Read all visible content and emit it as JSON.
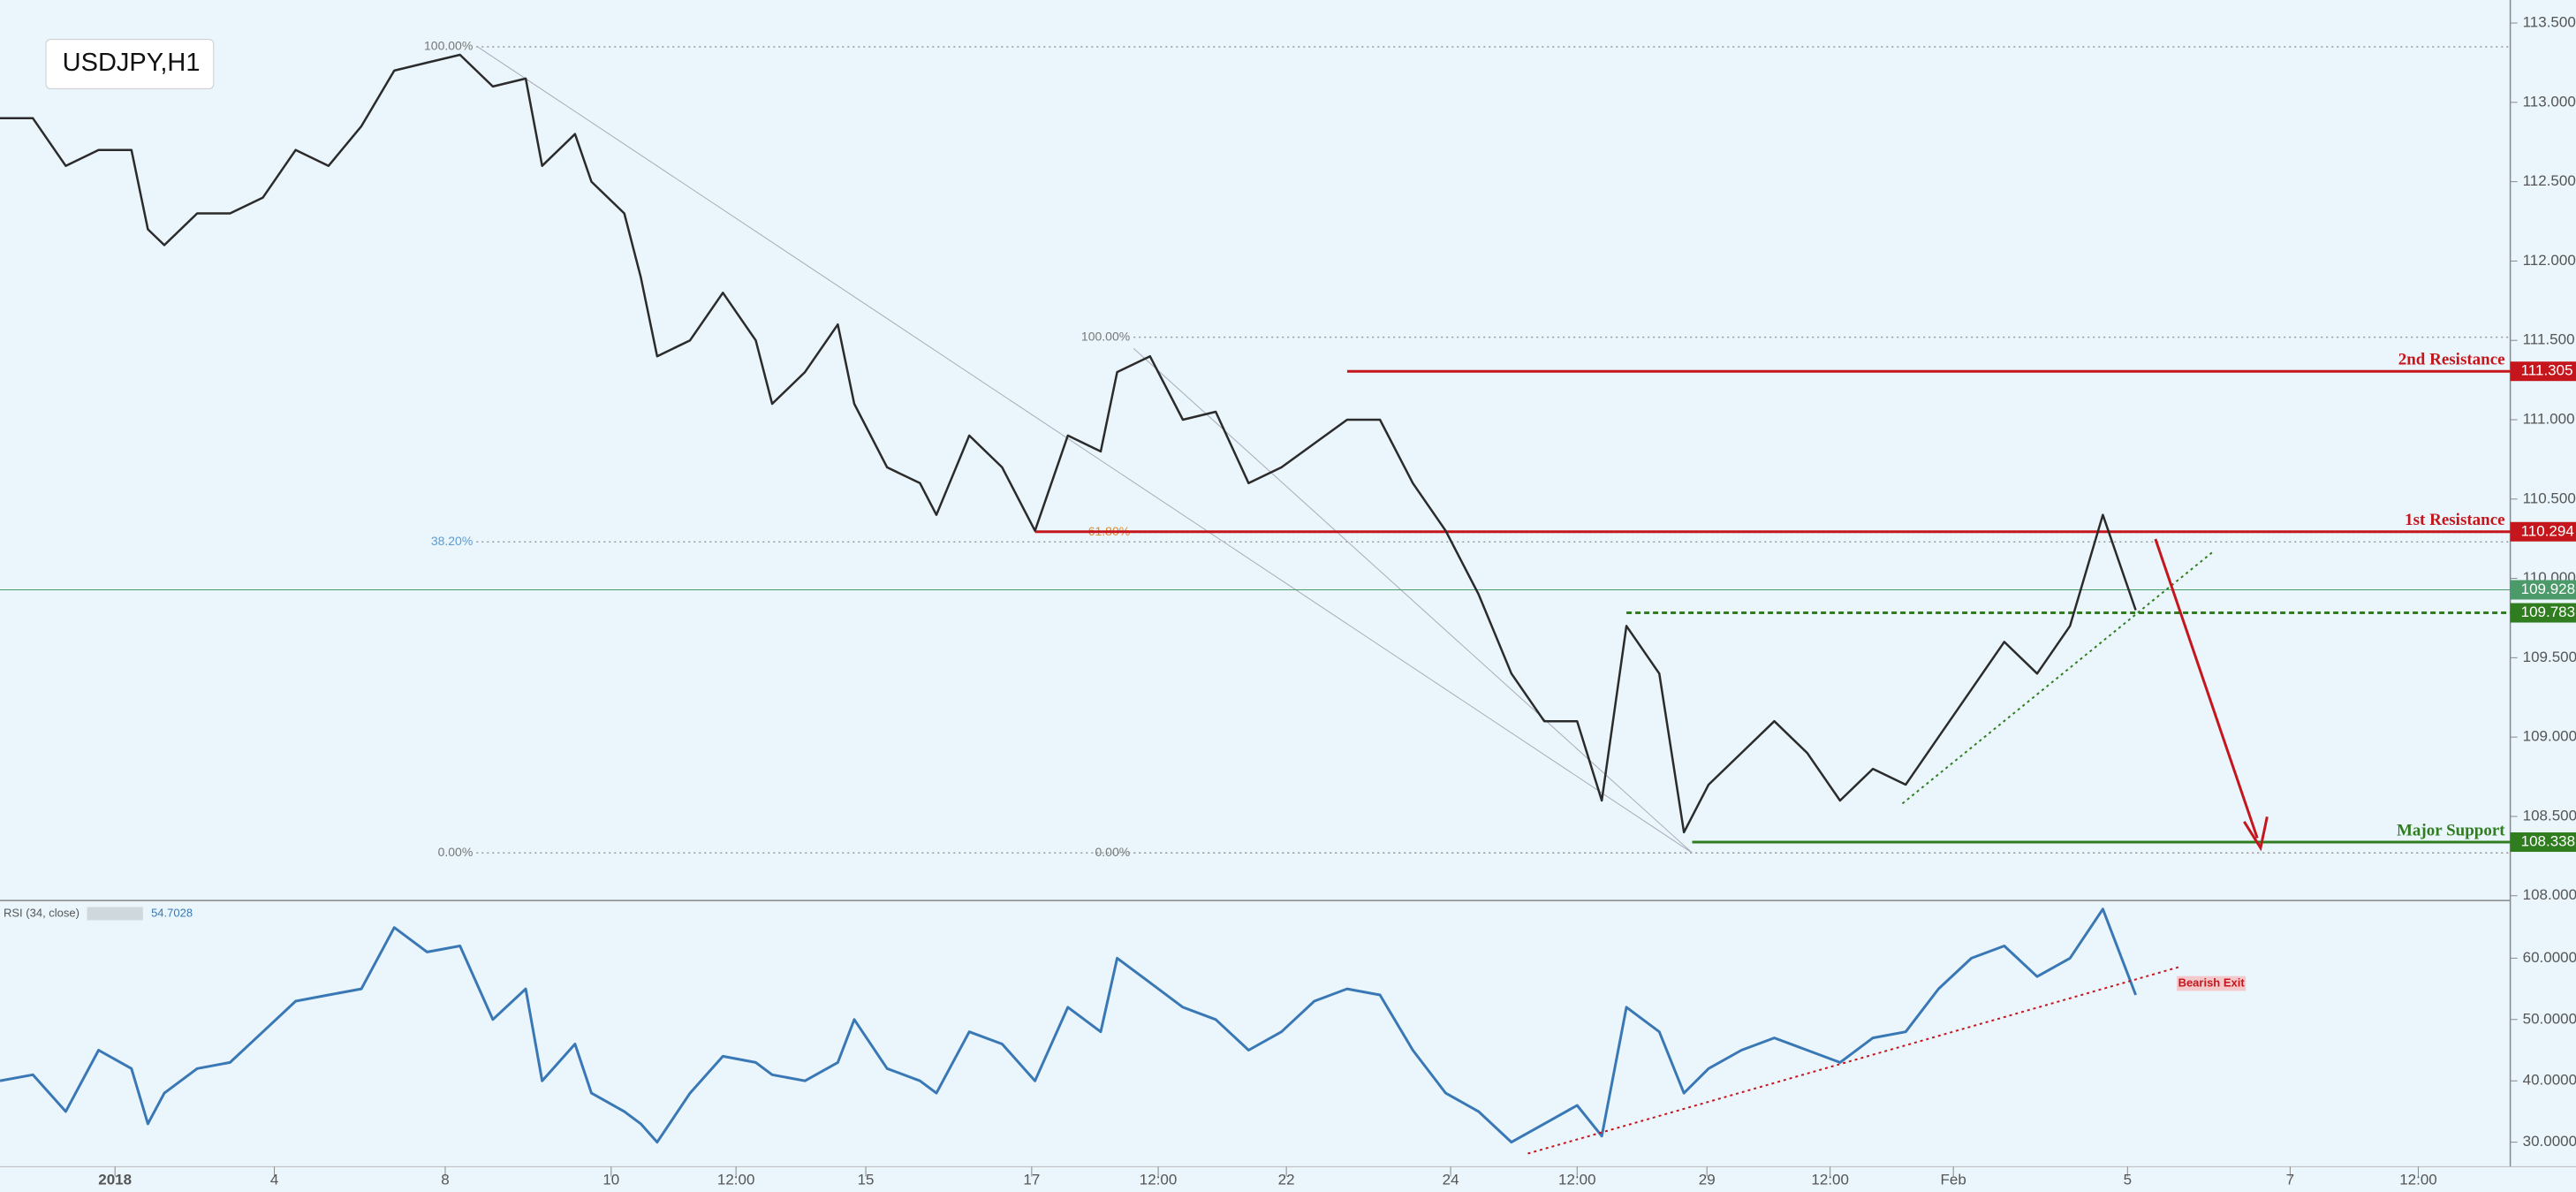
{
  "chart_data": [
    {
      "type": "line",
      "title": "USDJPY,H1",
      "color": "#2b2b2b",
      "x": [
        0,
        2,
        4,
        6,
        8,
        9,
        10,
        12,
        14,
        16,
        18,
        20,
        22,
        24,
        26,
        28,
        30,
        32,
        33,
        35,
        36,
        38,
        39,
        40,
        42,
        44,
        46,
        47,
        49,
        51,
        52,
        54,
        56,
        57,
        59,
        61,
        63,
        65,
        67,
        68,
        70,
        72,
        74,
        76,
        78,
        80,
        82,
        84,
        86,
        88,
        90,
        92,
        94,
        96,
        97.5,
        99,
        101,
        102.5,
        104,
        106,
        108,
        110,
        112,
        114,
        116,
        118,
        120,
        122,
        124,
        126,
        128,
        130
      ],
      "values": [
        112.9,
        112.9,
        112.6,
        112.7,
        112.7,
        112.2,
        112.1,
        112.3,
        112.3,
        112.4,
        112.7,
        112.6,
        112.85,
        113.2,
        113.25,
        113.3,
        113.1,
        113.15,
        112.6,
        112.8,
        112.5,
        112.3,
        111.9,
        111.4,
        111.5,
        111.8,
        111.5,
        111.1,
        111.3,
        111.6,
        111.1,
        110.7,
        110.6,
        110.4,
        110.9,
        110.7,
        110.3,
        110.9,
        110.8,
        111.3,
        111.4,
        111.0,
        111.05,
        110.6,
        110.7,
        110.85,
        111.0,
        111.0,
        110.6,
        110.3,
        109.9,
        109.4,
        109.1,
        109.1,
        108.6,
        109.7,
        109.4,
        108.4,
        108.7,
        108.9,
        109.1,
        108.9,
        108.6,
        108.8,
        108.7,
        109.0,
        109.3,
        109.6,
        109.4,
        109.7,
        110.4,
        109.8
      ],
      "xlim": [
        0,
        152.8
      ],
      "xticks": [
        {
          "value": 7,
          "label": "2018"
        },
        {
          "value": 16.7,
          "label": "4"
        },
        {
          "value": 27.1,
          "label": "8"
        },
        {
          "value": 37.2,
          "label": "10"
        },
        {
          "value": 44.8,
          "label": "12:00"
        },
        {
          "value": 52.7,
          "label": "15"
        },
        {
          "value": 62.8,
          "label": "17"
        },
        {
          "value": 70.5,
          "label": "12:00"
        },
        {
          "value": 78.3,
          "label": "22"
        },
        {
          "value": 88.3,
          "label": "24"
        },
        {
          "value": 96,
          "label": "12:00"
        },
        {
          "value": 103.9,
          "label": "29"
        },
        {
          "value": 111.4,
          "label": "12:00"
        },
        {
          "value": 118.9,
          "label": "Feb"
        },
        {
          "value": 129.5,
          "label": "5"
        },
        {
          "value": 139.4,
          "label": "7"
        },
        {
          "value": 147.2,
          "label": "12:00"
        }
      ],
      "ylim": [
        107.97,
        113.645
      ],
      "yticks": [
        {
          "value": 108,
          "label": "108.000"
        },
        {
          "value": 108.5,
          "label": "108.500"
        },
        {
          "value": 109,
          "label": "109.000"
        },
        {
          "value": 109.5,
          "label": "109.500"
        },
        {
          "value": 110,
          "label": "110.000"
        },
        {
          "value": 110.5,
          "label": "110.500"
        },
        {
          "value": 111,
          "label": "111.000"
        },
        {
          "value": 111.5,
          "label": "111.500"
        },
        {
          "value": 112,
          "label": "112.000"
        },
        {
          "value": 112.5,
          "label": "112.500"
        },
        {
          "value": 113,
          "label": "113.000"
        },
        {
          "value": 113.5,
          "label": "113.500"
        }
      ],
      "levels": [
        {
          "name": "2nd Resistance",
          "value": 111.305,
          "color": "#c4161c"
        },
        {
          "name": "1st Resistance",
          "value": 110.294,
          "color": "#c4161c"
        },
        {
          "value": 109.928,
          "color": "#4a9a6a"
        },
        {
          "value": 109.783,
          "color": "#2f7d1f"
        },
        {
          "name": "Major Support",
          "value": 108.338,
          "color": "#2f7d1f"
        }
      ],
      "fibs": [
        {
          "label": "100.00%",
          "price": 113.35
        },
        {
          "label": "38.20%",
          "price": 110.23
        },
        {
          "label": "0.00%",
          "price": 108.27
        },
        {
          "label": "100.00%",
          "price": 111.52
        },
        {
          "label": "61.80%",
          "price": 110.29
        },
        {
          "label": "0.00%",
          "price": 108.27
        }
      ]
    },
    {
      "type": "line",
      "title": "RSI (34, close)",
      "current": 54.7028,
      "color": "#3a78b5",
      "annotation": "Bearish Exit",
      "x": [
        0,
        2,
        4,
        6,
        8,
        9,
        10,
        12,
        14,
        16,
        18,
        20,
        22,
        24,
        26,
        28,
        30,
        32,
        33,
        35,
        36,
        38,
        39,
        40,
        42,
        44,
        46,
        47,
        49,
        51,
        52,
        54,
        56,
        57,
        59,
        61,
        63,
        65,
        67,
        68,
        70,
        72,
        74,
        76,
        78,
        80,
        82,
        84,
        86,
        88,
        90,
        92,
        94,
        96,
        97.5,
        99,
        101,
        102.5,
        104,
        106,
        108,
        110,
        112,
        114,
        116,
        118,
        120,
        122,
        124,
        126,
        128,
        130
      ],
      "values": [
        40,
        41,
        35,
        45,
        42,
        33,
        38,
        42,
        43,
        48,
        53,
        54,
        55,
        65,
        61,
        62,
        50,
        55,
        40,
        46,
        38,
        35,
        33,
        30,
        38,
        44,
        43,
        41,
        40,
        43,
        50,
        42,
        40,
        38,
        48,
        46,
        40,
        52,
        48,
        60,
        56,
        52,
        50,
        45,
        48,
        53,
        55,
        54,
        45,
        38,
        35,
        30,
        33,
        36,
        31,
        52,
        48,
        38,
        42,
        45,
        47,
        45,
        43,
        47,
        48,
        55,
        60,
        62,
        57,
        60,
        68,
        54
      ],
      "xlim": [
        0,
        152.8
      ],
      "ylim": [
        26,
        69.4
      ],
      "yticks": [
        {
          "value": 30,
          "label": "30.0000"
        },
        {
          "value": 40,
          "label": "40.0000"
        },
        {
          "value": 50,
          "label": "50.0000"
        },
        {
          "value": 60,
          "label": "60.0000"
        }
      ]
    }
  ]
}
